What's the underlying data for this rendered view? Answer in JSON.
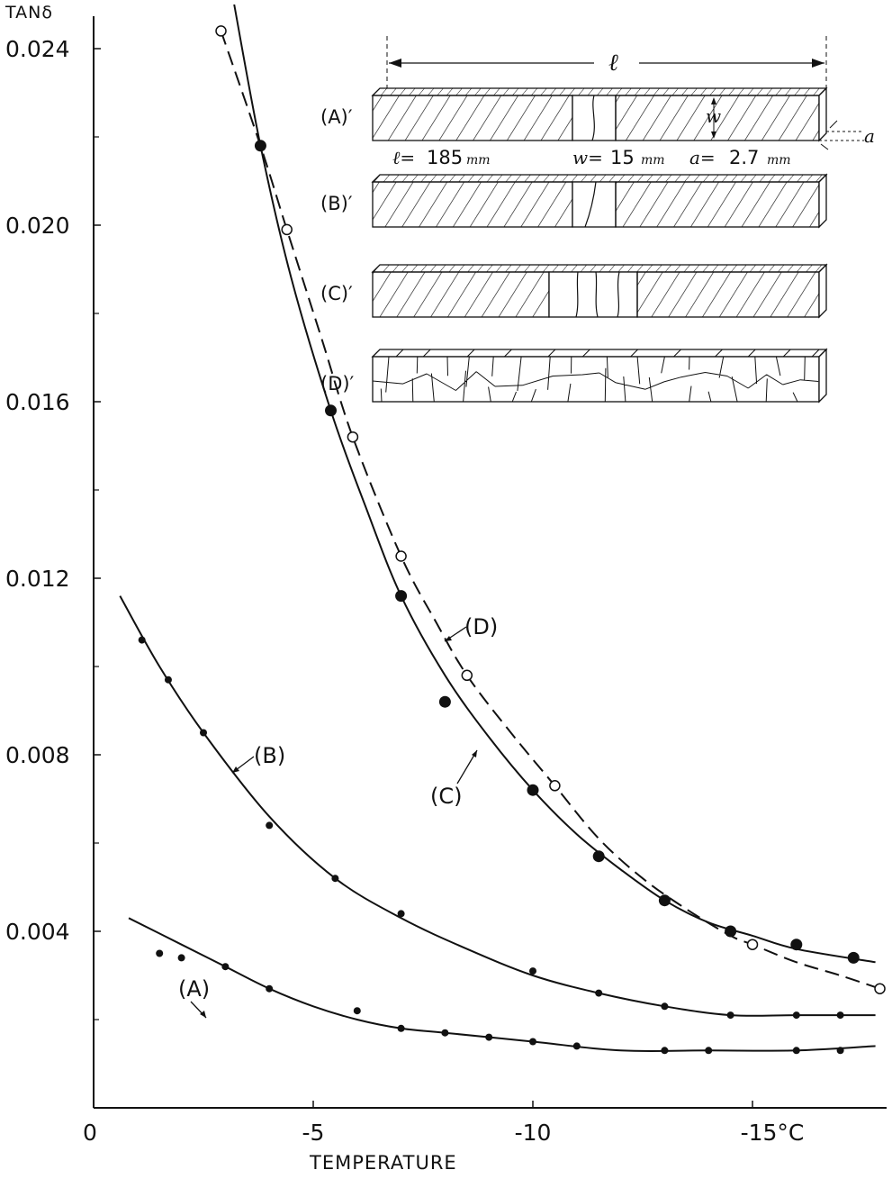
{
  "chart_data": {
    "type": "scatter",
    "title": "",
    "xlabel": "TEMPERATURE",
    "ylabel": "TANδ",
    "x_unit": "°C",
    "xlim": [
      0,
      -18
    ],
    "ylim": [
      0,
      0.0245
    ],
    "x_ticks": [
      {
        "value": 0,
        "label": "0"
      },
      {
        "value": -5,
        "label": "-5"
      },
      {
        "value": -10,
        "label": "-10"
      },
      {
        "value": -15,
        "label": "-15°C"
      }
    ],
    "y_ticks_labeled": [
      {
        "value": 0.004,
        "label": "0.004"
      },
      {
        "value": 0.008,
        "label": "0.008"
      },
      {
        "value": 0.012,
        "label": "0.012"
      },
      {
        "value": 0.016,
        "label": "0.016"
      },
      {
        "value": 0.02,
        "label": "0.020"
      },
      {
        "value": 0.024,
        "label": "0.024"
      }
    ],
    "y_ticks_minor": [
      0.002,
      0.006,
      0.01,
      0.014,
      0.018,
      0.022
    ],
    "series": [
      {
        "name": "(A)",
        "marker": "small-filled",
        "line": "solid",
        "points": [
          [
            -1.5,
            0.0035
          ],
          [
            -2.0,
            0.0034
          ],
          [
            -3.0,
            0.0032
          ],
          [
            -4.0,
            0.0027
          ],
          [
            -6.0,
            0.0022
          ],
          [
            -7.0,
            0.0018
          ],
          [
            -8.0,
            0.0017
          ],
          [
            -9.0,
            0.0016
          ],
          [
            -10.0,
            0.0015
          ],
          [
            -11.0,
            0.0014
          ],
          [
            -13.0,
            0.0013
          ],
          [
            -14.0,
            0.0013
          ],
          [
            -16.0,
            0.0013
          ],
          [
            -17.0,
            0.0013
          ]
        ],
        "curve": [
          [
            -0.8,
            0.0043
          ],
          [
            -2.0,
            0.0037
          ],
          [
            -3.0,
            0.0032
          ],
          [
            -4.0,
            0.0027
          ],
          [
            -5.0,
            0.0023
          ],
          [
            -6.0,
            0.002
          ],
          [
            -7.0,
            0.0018
          ],
          [
            -8.0,
            0.0017
          ],
          [
            -10.0,
            0.0015
          ],
          [
            -12.0,
            0.0013
          ],
          [
            -14.0,
            0.0013
          ],
          [
            -16.0,
            0.0013
          ],
          [
            -17.8,
            0.0014
          ]
        ]
      },
      {
        "name": "(B)",
        "marker": "small-filled",
        "line": "solid",
        "points": [
          [
            -1.1,
            0.0106
          ],
          [
            -1.7,
            0.0097
          ],
          [
            -2.5,
            0.0085
          ],
          [
            -4.0,
            0.0064
          ],
          [
            -5.5,
            0.0052
          ],
          [
            -7.0,
            0.0044
          ],
          [
            -10.0,
            0.0031
          ],
          [
            -11.5,
            0.0026
          ],
          [
            -13.0,
            0.0023
          ],
          [
            -14.5,
            0.0021
          ],
          [
            -16.0,
            0.0021
          ],
          [
            -17.0,
            0.0021
          ]
        ],
        "curve": [
          [
            -0.6,
            0.0116
          ],
          [
            -1.5,
            0.01
          ],
          [
            -2.5,
            0.0085
          ],
          [
            -4.0,
            0.0066
          ],
          [
            -5.5,
            0.0052
          ],
          [
            -7.0,
            0.0043
          ],
          [
            -8.5,
            0.0036
          ],
          [
            -10.0,
            0.003
          ],
          [
            -11.5,
            0.0026
          ],
          [
            -13.0,
            0.0023
          ],
          [
            -14.5,
            0.0021
          ],
          [
            -16.0,
            0.0021
          ],
          [
            -17.8,
            0.0021
          ]
        ]
      },
      {
        "name": "(C)",
        "marker": "large-filled",
        "line": "solid",
        "points": [
          [
            -3.8,
            0.0218
          ],
          [
            -5.4,
            0.0158
          ],
          [
            -7.0,
            0.0116
          ],
          [
            -8.0,
            0.0092
          ],
          [
            -10.0,
            0.0072
          ],
          [
            -11.5,
            0.0057
          ],
          [
            -13.0,
            0.0047
          ],
          [
            -14.5,
            0.004
          ],
          [
            -16.0,
            0.0037
          ],
          [
            -17.3,
            0.0034
          ]
        ],
        "curve": [
          [
            -3.2,
            0.025
          ],
          [
            -3.8,
            0.0218
          ],
          [
            -4.5,
            0.0188
          ],
          [
            -5.4,
            0.0158
          ],
          [
            -6.2,
            0.0136
          ],
          [
            -7.0,
            0.0116
          ],
          [
            -8.0,
            0.0098
          ],
          [
            -9.0,
            0.0084
          ],
          [
            -10.0,
            0.0072
          ],
          [
            -11.0,
            0.0062
          ],
          [
            -12.0,
            0.0054
          ],
          [
            -13.0,
            0.0047
          ],
          [
            -14.0,
            0.0042
          ],
          [
            -15.0,
            0.0039
          ],
          [
            -16.0,
            0.0036
          ],
          [
            -17.8,
            0.0033
          ]
        ]
      },
      {
        "name": "(D)",
        "marker": "open-circle",
        "line": "dashed",
        "points": [
          [
            -2.9,
            0.0244
          ],
          [
            -4.4,
            0.0199
          ],
          [
            -5.9,
            0.0152
          ],
          [
            -7.0,
            0.0125
          ],
          [
            -8.5,
            0.0098
          ],
          [
            -10.5,
            0.0073
          ],
          [
            -15.0,
            0.0037
          ],
          [
            -17.9,
            0.0027
          ]
        ],
        "curve": [
          [
            -2.9,
            0.0244
          ],
          [
            -3.8,
            0.0218
          ],
          [
            -4.4,
            0.0199
          ],
          [
            -5.2,
            0.0174
          ],
          [
            -5.9,
            0.0152
          ],
          [
            -7.0,
            0.0125
          ],
          [
            -7.8,
            0.011
          ],
          [
            -8.5,
            0.0098
          ],
          [
            -9.5,
            0.0085
          ],
          [
            -10.5,
            0.0073
          ],
          [
            -11.5,
            0.0061
          ],
          [
            -12.5,
            0.0052
          ],
          [
            -13.5,
            0.0045
          ],
          [
            -14.5,
            0.0039
          ],
          [
            -15.0,
            0.0037
          ],
          [
            -16.0,
            0.0033
          ],
          [
            -17.0,
            0.003
          ],
          [
            -17.9,
            0.0027
          ]
        ]
      }
    ],
    "curve_labels": {
      "A": "(A)",
      "B": "(B)",
      "C": "(C)",
      "D": "(D)"
    }
  },
  "inset": {
    "length_symbol": "ℓ",
    "width_symbol": "w",
    "thickness_symbol": "a",
    "specimens": [
      {
        "label": "(A)′"
      },
      {
        "label": "(B)′"
      },
      {
        "label": "(C)′"
      },
      {
        "label": "(D)′"
      }
    ],
    "dimensions": {
      "l_label": "ℓ=",
      "l_value": "185",
      "w_label": "w=",
      "w_value": "15",
      "a_label": "a=",
      "a_value": "2.7",
      "unit": "mm"
    }
  }
}
